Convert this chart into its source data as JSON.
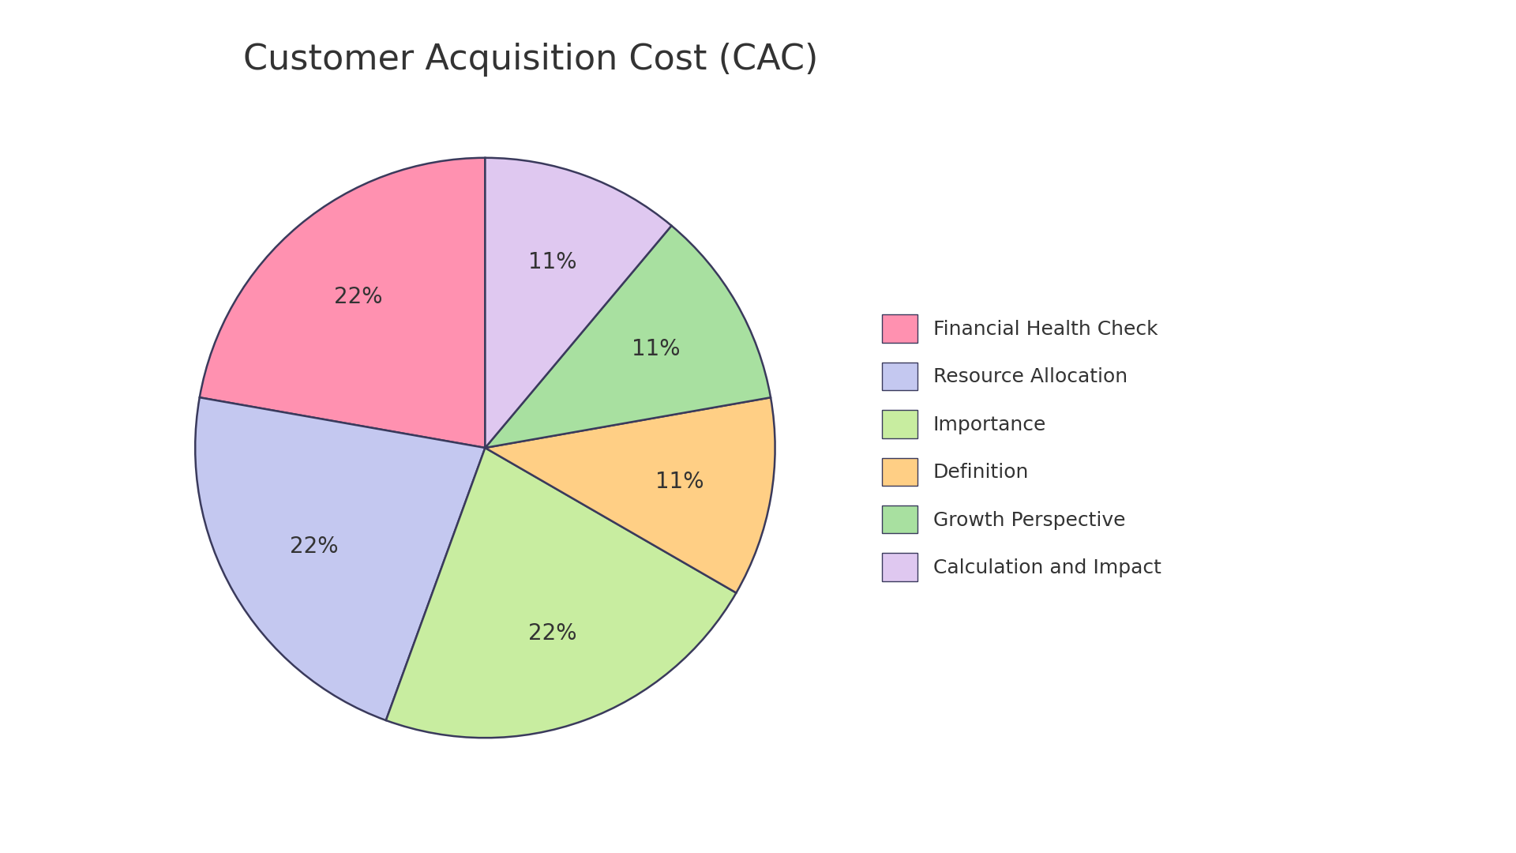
{
  "title": "Customer Acquisition Cost (CAC)",
  "labels": [
    "Financial Health Check",
    "Resource Allocation",
    "Importance",
    "Definition",
    "Growth Perspective",
    "Calculation and Impact"
  ],
  "values": [
    22,
    22,
    22,
    11,
    11,
    11
  ],
  "colors": [
    "#FF91B0",
    "#C4C8F0",
    "#C8EDA0",
    "#FFCF85",
    "#A8E0A0",
    "#DFC8F0"
  ],
  "wedge_edge_color": "#3a3a5c",
  "wedge_edge_width": 1.8,
  "background_color": "#ffffff",
  "title_fontsize": 32,
  "pct_fontsize": 20,
  "legend_fontsize": 18,
  "start_angle": 90,
  "pct_distance": 0.68
}
